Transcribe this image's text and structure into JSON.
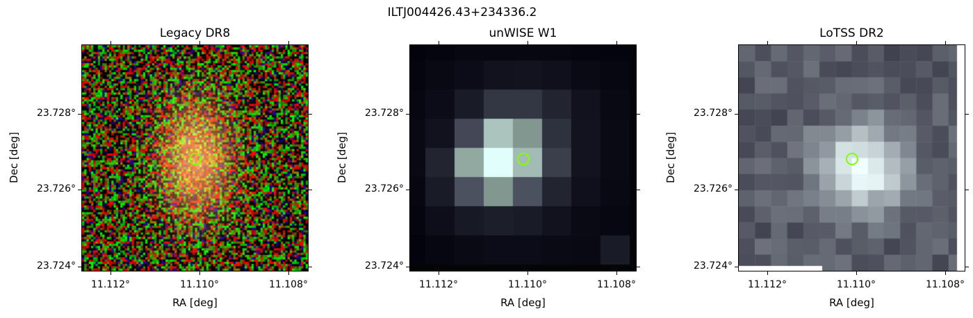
{
  "suptitle": "ILTJ004426.43+234336.2",
  "panels": [
    {
      "title": "Legacy DR8",
      "xlabel": "RA [deg]",
      "ylabel": "Dec [deg]",
      "xticks": [
        "11.112°",
        "11.110°",
        "11.108°"
      ],
      "yticks": [
        "23.728°",
        "23.726°",
        "23.724°"
      ],
      "image": "rgb-noise-galaxy"
    },
    {
      "title": "unWISE W1",
      "xlabel": "RA [deg]",
      "ylabel": "Dec [deg]",
      "xticks": [
        "11.112°",
        "11.110°",
        "11.108°"
      ],
      "yticks": [
        "23.728°",
        "23.726°",
        "23.724°"
      ],
      "image": "grayscale-coarse-pixels"
    },
    {
      "title": "LoTSS DR2",
      "xlabel": "RA [deg]",
      "ylabel": "Dec [deg]",
      "xticks": [
        "11.112°",
        "11.110°",
        "11.108°"
      ],
      "yticks": [
        "23.728°",
        "23.726°",
        "23.724°"
      ],
      "image": "bone-colormap-radio"
    }
  ],
  "colors": {
    "marker": "#7fff00"
  }
}
